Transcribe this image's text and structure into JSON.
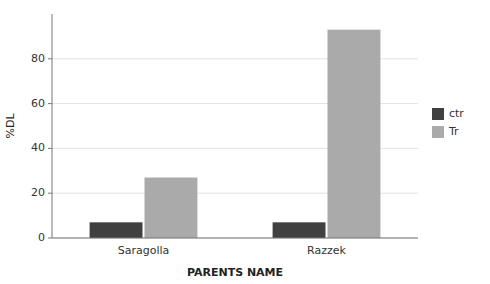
{
  "chart_data": {
    "type": "bar",
    "categories": [
      "Saragolla",
      "Razzek"
    ],
    "series": [
      {
        "name": "ctr",
        "color": "#404040",
        "values": [
          7,
          7
        ]
      },
      {
        "name": "Tr",
        "color": "#aaaaaa",
        "values": [
          27,
          93
        ]
      }
    ],
    "xlabel": "PARENTS NAME",
    "ylabel": "%DL",
    "ylim": [
      0,
      100
    ],
    "yticks": [
      0,
      20,
      40,
      60,
      80
    ],
    "grid": true,
    "legend": "right"
  }
}
